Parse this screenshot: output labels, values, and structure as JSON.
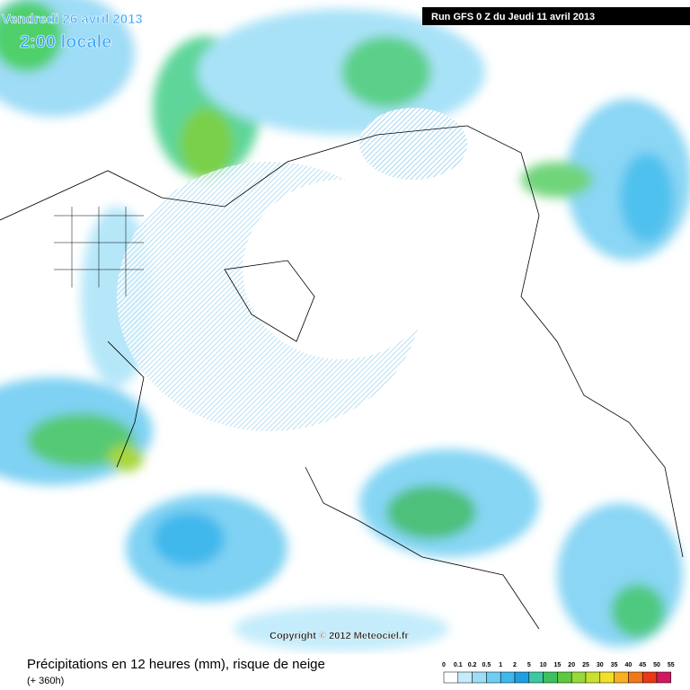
{
  "header": {
    "date": "Vendredi 26 avril 2013",
    "time": "2:00 locale",
    "run": "Run GFS 0 Z du Jeudi 11 avril 2013"
  },
  "copyright": "Copyright © 2012 Meteociel.fr",
  "footer": {
    "title": "Précipitations en 12 heures (mm), risque de neige",
    "lead": "(+ 360h)"
  },
  "legend": {
    "labels": [
      "0",
      "0.1",
      "0.2",
      "0.5",
      "1",
      "2",
      "5",
      "10",
      "15",
      "20",
      "25",
      "30",
      "35",
      "40",
      "45",
      "50",
      "55"
    ]
  }
}
